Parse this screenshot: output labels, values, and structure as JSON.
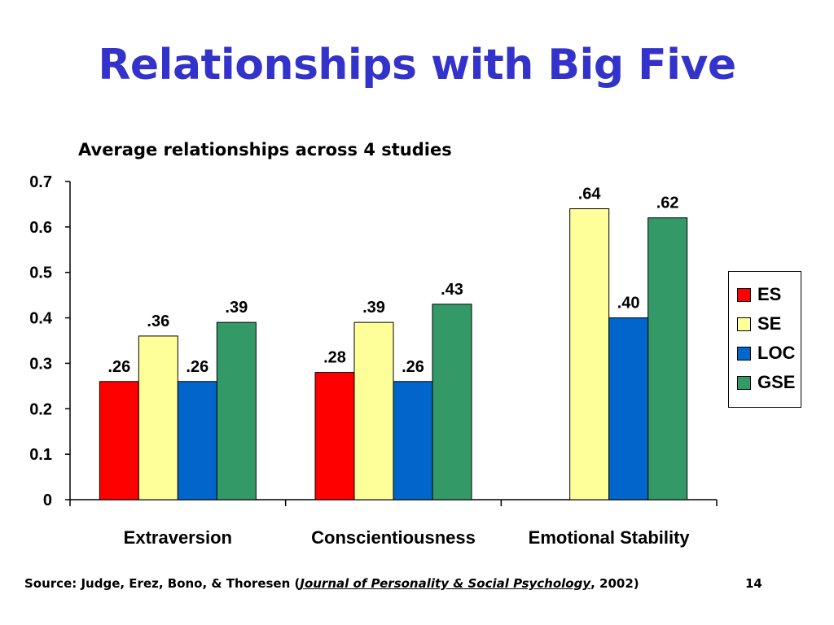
{
  "slide": {
    "title": "Relationships with Big Five",
    "page_number": "14"
  },
  "source": {
    "prefix": "Source: Judge, Erez, Bono, & Thoresen (",
    "journal": "Journal of Personality & Social Psychology",
    "suffix": ", 2002)"
  },
  "chart_data": {
    "type": "bar",
    "title": "Average relationships across 4 studies",
    "xlabel": "",
    "ylabel": "",
    "categories": [
      "Extraversion",
      "Conscientiousness",
      "Emotional Stability"
    ],
    "ylim": [
      0,
      0.7
    ],
    "yticks": [
      "0",
      "0.1",
      "0.2",
      "0.3",
      "0.4",
      "0.5",
      "0.6",
      "0.7"
    ],
    "legend_position": "right",
    "grid": false,
    "series": [
      {
        "name": "ES",
        "color": "#ff0000",
        "values": [
          0.26,
          0.28,
          null
        ],
        "labels": [
          ".26",
          ".28",
          ""
        ]
      },
      {
        "name": "SE",
        "color": "#ffff99",
        "values": [
          0.36,
          0.39,
          0.64
        ],
        "labels": [
          ".36",
          ".39",
          ".64"
        ]
      },
      {
        "name": "LOC",
        "color": "#0066cc",
        "values": [
          0.26,
          0.26,
          0.4
        ],
        "labels": [
          ".26",
          ".26",
          ".40"
        ]
      },
      {
        "name": "GSE",
        "color": "#339966",
        "values": [
          0.39,
          0.43,
          0.62
        ],
        "labels": [
          ".39",
          ".43",
          ".62"
        ]
      }
    ]
  }
}
